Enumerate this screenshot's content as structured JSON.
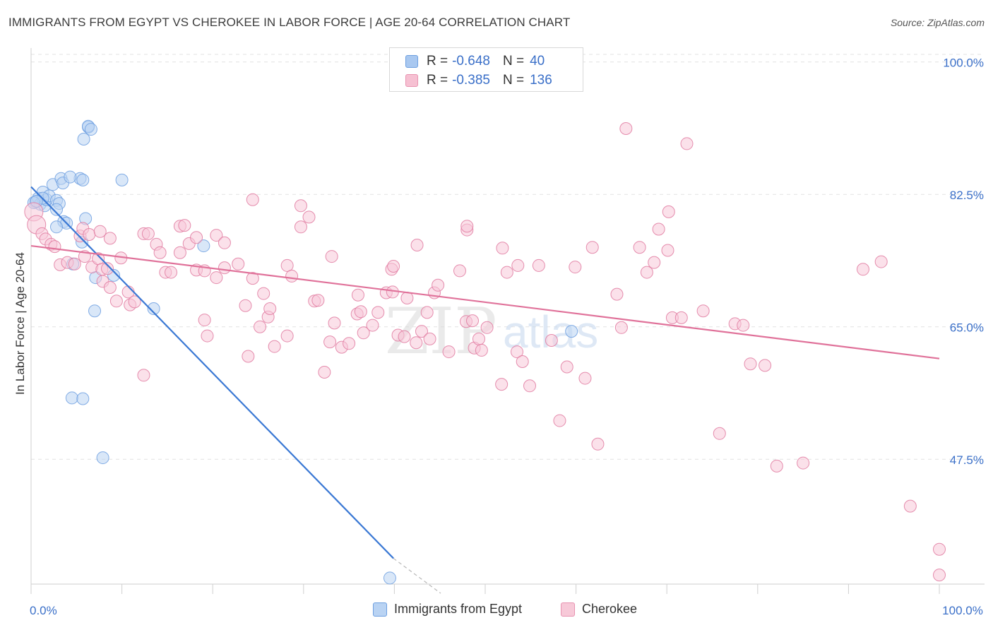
{
  "header": {
    "title": "IMMIGRANTS FROM EGYPT VS CHEROKEE IN LABOR FORCE | AGE 20-64 CORRELATION CHART",
    "source": "Source: ZipAtlas.com"
  },
  "stats": [
    {
      "r_label": "R =",
      "r_value": "-0.648",
      "n_label": "N =",
      "n_value": "40",
      "color": "#a9c8f0",
      "border": "#6d9fe0"
    },
    {
      "r_label": "R =",
      "r_value": "-0.385",
      "n_label": "N =",
      "n_value": "136",
      "color": "#f6c0d2",
      "border": "#e893b0"
    }
  ],
  "legend": [
    {
      "label": "Immigrants from Egypt",
      "color": "#b9d3f3",
      "border": "#6d9fe0"
    },
    {
      "label": "Cherokee",
      "color": "#f7c9d8",
      "border": "#e893b0"
    }
  ],
  "watermark": {
    "zip": "ZIP",
    "atlas": "atlas"
  },
  "chart_data": {
    "type": "scatter",
    "title": "IMMIGRANTS FROM EGYPT VS CHEROKEE IN LABOR FORCE | AGE 20-64 CORRELATION CHART",
    "xlabel": "",
    "ylabel": "In Labor Force | Age 20-64",
    "xlim": [
      0,
      100
    ],
    "ylim": [
      31,
      101
    ],
    "x_tick_labels": [
      {
        "value": 0,
        "label": "0.0%"
      },
      {
        "value": 100,
        "label": "100.0%"
      }
    ],
    "y_tick_labels": [
      {
        "value": 100,
        "label": "100.0%"
      },
      {
        "value": 82.5,
        "label": "82.5%"
      },
      {
        "value": 65,
        "label": "65.0%"
      },
      {
        "value": 47.5,
        "label": "47.5%"
      }
    ],
    "grid": true,
    "legend_position": "bottom-center",
    "series": [
      {
        "name": "Immigrants from Egypt",
        "color": "#6d9fe0",
        "fill": "#b9d3f3",
        "trend": {
          "x": [
            0,
            39.9
          ],
          "y": [
            83.5,
            34.4
          ],
          "dashed_to": {
            "x": 45.1,
            "y": 28.0
          }
        },
        "points": [
          [
            0.5,
            81.5
          ],
          [
            0.8,
            82.0
          ],
          [
            1.0,
            81.2
          ],
          [
            1.3,
            82.8
          ],
          [
            1.5,
            81.0
          ],
          [
            1.7,
            81.8
          ],
          [
            2.0,
            82.3
          ],
          [
            2.4,
            83.8
          ],
          [
            2.8,
            81.7
          ],
          [
            3.1,
            81.3
          ],
          [
            3.3,
            84.6
          ],
          [
            3.5,
            84.0
          ],
          [
            1.3,
            82.0
          ],
          [
            2.8,
            80.5
          ],
          [
            3.6,
            78.9
          ],
          [
            3.9,
            78.7
          ],
          [
            2.8,
            78.2
          ],
          [
            5.4,
            84.6
          ],
          [
            5.7,
            84.4
          ],
          [
            4.3,
            84.8
          ],
          [
            5.8,
            89.8
          ],
          [
            6.3,
            91.4
          ],
          [
            6.3,
            91.5
          ],
          [
            6.6,
            91.1
          ],
          [
            10.0,
            84.4
          ],
          [
            6.0,
            79.3
          ],
          [
            5.6,
            76.2
          ],
          [
            4.6,
            73.3
          ],
          [
            7.1,
            71.5
          ],
          [
            9.1,
            71.8
          ],
          [
            7.0,
            67.1
          ],
          [
            13.5,
            67.4
          ],
          [
            19.0,
            75.7
          ],
          [
            4.5,
            55.6
          ],
          [
            5.7,
            55.5
          ],
          [
            7.9,
            47.7
          ],
          [
            39.5,
            31.8
          ],
          [
            59.5,
            64.4
          ],
          [
            0.3,
            81.4
          ],
          [
            0.6,
            81.6
          ]
        ]
      },
      {
        "name": "Cherokee",
        "color": "#e07aa0",
        "fill": "#f7c9d8",
        "trend": {
          "x": [
            0,
            100
          ],
          "y": [
            75.7,
            60.8
          ]
        },
        "points": [
          [
            0.3,
            80.2
          ],
          [
            0.6,
            78.5
          ],
          [
            1.2,
            77.3
          ],
          [
            1.6,
            76.6
          ],
          [
            2.2,
            75.9
          ],
          [
            2.6,
            75.6
          ],
          [
            3.2,
            73.2
          ],
          [
            4.0,
            73.5
          ],
          [
            4.8,
            73.3
          ],
          [
            5.4,
            77.0
          ],
          [
            5.7,
            78.0
          ],
          [
            5.9,
            74.3
          ],
          [
            6.4,
            77.2
          ],
          [
            6.7,
            72.9
          ],
          [
            7.4,
            74.0
          ],
          [
            7.8,
            72.6
          ],
          [
            7.9,
            71.0
          ],
          [
            7.6,
            77.6
          ],
          [
            8.4,
            72.7
          ],
          [
            8.7,
            76.7
          ],
          [
            8.7,
            70.2
          ],
          [
            9.4,
            68.4
          ],
          [
            9.9,
            74.1
          ],
          [
            10.7,
            69.6
          ],
          [
            10.9,
            67.9
          ],
          [
            11.4,
            68.3
          ],
          [
            12.4,
            77.3
          ],
          [
            12.9,
            77.3
          ],
          [
            12.4,
            58.6
          ],
          [
            13.8,
            75.9
          ],
          [
            14.2,
            74.8
          ],
          [
            14.8,
            72.2
          ],
          [
            15.4,
            72.2
          ],
          [
            16.4,
            74.8
          ],
          [
            16.4,
            78.3
          ],
          [
            16.9,
            78.4
          ],
          [
            17.4,
            76.0
          ],
          [
            18.2,
            76.8
          ],
          [
            18.2,
            72.5
          ],
          [
            19.1,
            72.4
          ],
          [
            19.1,
            65.9
          ],
          [
            19.4,
            63.8
          ],
          [
            20.4,
            71.5
          ],
          [
            20.4,
            77.1
          ],
          [
            21.3,
            76.1
          ],
          [
            21.3,
            72.8
          ],
          [
            22.8,
            73.3
          ],
          [
            23.6,
            67.8
          ],
          [
            23.9,
            61.1
          ],
          [
            24.4,
            81.8
          ],
          [
            24.4,
            71.4
          ],
          [
            25.2,
            65.0
          ],
          [
            25.6,
            69.4
          ],
          [
            26.1,
            66.3
          ],
          [
            26.3,
            67.4
          ],
          [
            26.8,
            62.4
          ],
          [
            28.2,
            63.8
          ],
          [
            28.2,
            73.1
          ],
          [
            28.7,
            71.7
          ],
          [
            29.7,
            81.0
          ],
          [
            29.7,
            78.2
          ],
          [
            30.6,
            79.5
          ],
          [
            31.2,
            68.4
          ],
          [
            31.6,
            68.5
          ],
          [
            32.3,
            59.0
          ],
          [
            32.9,
            63.0
          ],
          [
            33.1,
            74.3
          ],
          [
            33.4,
            65.5
          ],
          [
            34.2,
            62.3
          ],
          [
            35.0,
            62.8
          ],
          [
            35.9,
            66.7
          ],
          [
            36.0,
            69.2
          ],
          [
            36.3,
            67.0
          ],
          [
            36.6,
            64.2
          ],
          [
            37.6,
            65.2
          ],
          [
            38.2,
            66.9
          ],
          [
            39.1,
            69.5
          ],
          [
            39.7,
            72.6
          ],
          [
            39.9,
            73.0
          ],
          [
            39.8,
            69.6
          ],
          [
            40.4,
            63.9
          ],
          [
            41.1,
            63.7
          ],
          [
            41.4,
            68.8
          ],
          [
            42.4,
            62.9
          ],
          [
            42.5,
            75.8
          ],
          [
            43.0,
            64.4
          ],
          [
            43.6,
            66.9
          ],
          [
            43.9,
            63.4
          ],
          [
            44.4,
            69.5
          ],
          [
            44.8,
            70.5
          ],
          [
            46.0,
            61.7
          ],
          [
            47.2,
            72.4
          ],
          [
            47.9,
            65.7
          ],
          [
            48.0,
            77.8
          ],
          [
            48.0,
            78.3
          ],
          [
            48.6,
            65.8
          ],
          [
            48.8,
            62.2
          ],
          [
            49.3,
            63.4
          ],
          [
            49.6,
            61.9
          ],
          [
            50.2,
            64.9
          ],
          [
            51.8,
            57.4
          ],
          [
            51.9,
            75.4
          ],
          [
            52.4,
            72.2
          ],
          [
            53.5,
            61.7
          ],
          [
            53.6,
            73.1
          ],
          [
            54.1,
            60.4
          ],
          [
            54.9,
            57.2
          ],
          [
            55.9,
            73.1
          ],
          [
            57.3,
            63.2
          ],
          [
            58.2,
            52.6
          ],
          [
            59.0,
            59.7
          ],
          [
            59.9,
            72.9
          ],
          [
            61.0,
            58.2
          ],
          [
            61.8,
            75.5
          ],
          [
            62.4,
            49.5
          ],
          [
            64.5,
            69.3
          ],
          [
            65.0,
            64.9
          ],
          [
            65.5,
            91.2
          ],
          [
            67.0,
            75.5
          ],
          [
            67.8,
            72.2
          ],
          [
            68.6,
            73.5
          ],
          [
            69.1,
            77.9
          ],
          [
            70.1,
            75.1
          ],
          [
            70.2,
            80.2
          ],
          [
            70.6,
            66.2
          ],
          [
            71.6,
            66.2
          ],
          [
            72.2,
            89.2
          ],
          [
            74.0,
            67.1
          ],
          [
            75.8,
            50.9
          ],
          [
            77.5,
            65.4
          ],
          [
            78.4,
            65.2
          ],
          [
            79.2,
            60.1
          ],
          [
            80.8,
            59.9
          ],
          [
            82.1,
            46.6
          ],
          [
            85.0,
            47.0
          ],
          [
            91.6,
            72.6
          ],
          [
            93.6,
            73.6
          ],
          [
            96.8,
            41.3
          ],
          [
            100.0,
            32.2
          ],
          [
            100.0,
            35.6
          ]
        ]
      }
    ]
  }
}
